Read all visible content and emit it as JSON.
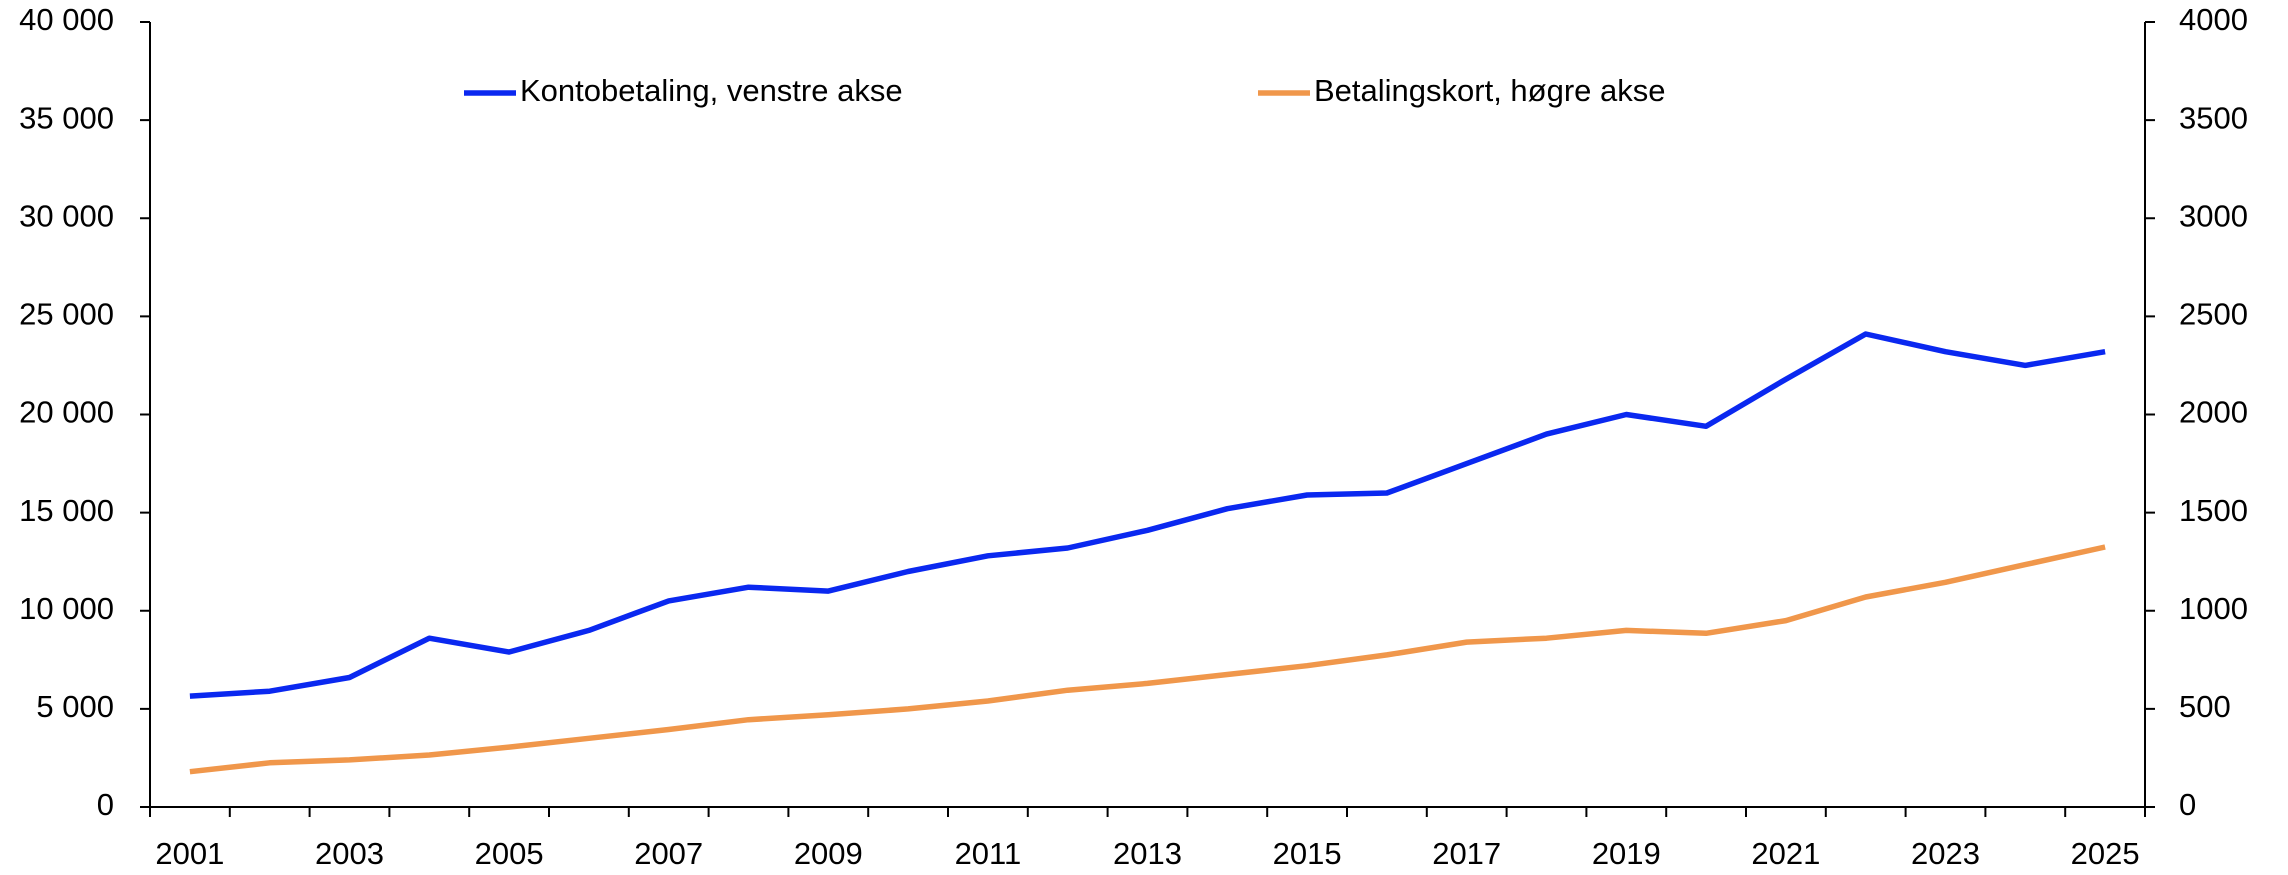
{
  "chart_data": {
    "type": "line",
    "categories": [
      "2001",
      null,
      "2003",
      null,
      "2005",
      null,
      "2007",
      null,
      "2009",
      null,
      "2011",
      null,
      "2013",
      null,
      "2015",
      null,
      "2017",
      null,
      "2019",
      null,
      "2021",
      null,
      "2023",
      null,
      "2025"
    ],
    "series": [
      {
        "name": "Kontobetaling, venstre akse",
        "color": "#0a28f0",
        "axis": "y",
        "values": [
          5650,
          5900,
          6600,
          8600,
          7900,
          9000,
          10500,
          11200,
          11000,
          12000,
          12800,
          13200,
          14100,
          15200,
          15900,
          16000,
          17500,
          19000,
          20000,
          19400,
          21800,
          24100,
          23200,
          22500,
          23200
        ]
      },
      {
        "name": "Betalingskort, høgre akse",
        "color": "#f0974b",
        "axis": "y2",
        "values": [
          180,
          225,
          240,
          265,
          305,
          350,
          395,
          445,
          470,
          500,
          540,
          595,
          630,
          675,
          720,
          775,
          840,
          860,
          900,
          885,
          950,
          1070,
          1145,
          1235,
          1325
        ]
      }
    ],
    "ylim": [
      0,
      40000
    ],
    "yticks": [
      0,
      {
        "value": 5000,
        "label": "5 000"
      },
      {
        "value": 10000,
        "label": "10 000"
      },
      {
        "value": 15000,
        "label": "15 000"
      },
      {
        "value": 20000,
        "label": "20 000"
      },
      {
        "value": 25000,
        "label": "25 000"
      },
      {
        "value": 30000,
        "label": "30 000"
      },
      {
        "value": 35000,
        "label": "35 000"
      },
      {
        "value": 40000,
        "label": "40 000"
      }
    ],
    "y2lim": [
      0,
      4000
    ],
    "y2ticks": [
      0,
      500,
      1000,
      1500,
      2000,
      2500,
      3000,
      3500,
      4000
    ],
    "grid": false,
    "legend": "top"
  }
}
